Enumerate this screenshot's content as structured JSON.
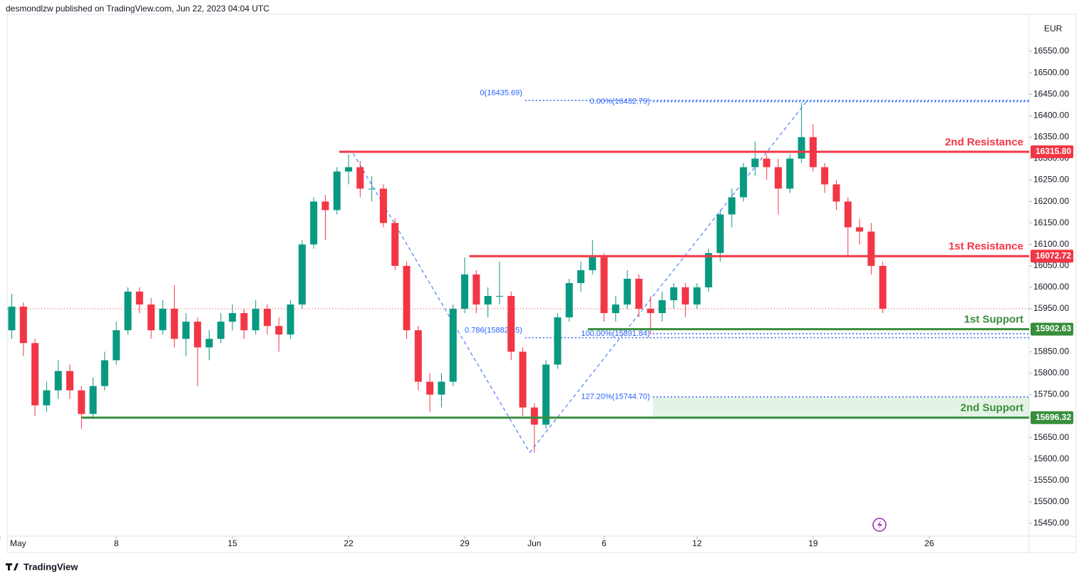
{
  "header": {
    "byline": "desmondlzw published on TradingView.com, Jun 22, 2023 04:04 UTC"
  },
  "footer": {
    "brand": "TradingView"
  },
  "chart_data": {
    "type": "candlestick",
    "currency": "EUR",
    "up_color": "#089981",
    "down_color": "#f23645",
    "grid": false,
    "xlim": [
      0.3,
      44.3
    ],
    "xticks": [
      {
        "value": 0,
        "label": "May"
      },
      {
        "value": 5,
        "label": "8"
      },
      {
        "value": 10,
        "label": "15"
      },
      {
        "value": 15,
        "label": "22"
      },
      {
        "value": 20,
        "label": "29"
      },
      {
        "value": 23,
        "label": "Jun"
      },
      {
        "value": 26,
        "label": "6"
      },
      {
        "value": 30,
        "label": "12"
      },
      {
        "value": 35,
        "label": "19"
      },
      {
        "value": 40,
        "label": "26"
      }
    ],
    "ylim": [
      15420,
      16636.4
    ],
    "yticks": [
      {
        "value": 15450,
        "label": "15450.00"
      },
      {
        "value": 15500,
        "label": "15500.00"
      },
      {
        "value": 15550,
        "label": "15550.00"
      },
      {
        "value": 15600,
        "label": "15600.00"
      },
      {
        "value": 15650,
        "label": "15650.00"
      },
      {
        "value": 15700,
        "label": "15700.00"
      },
      {
        "value": 15750,
        "label": "15750.00"
      },
      {
        "value": 15800,
        "label": "15800.00"
      },
      {
        "value": 15850,
        "label": "15850.00"
      },
      {
        "value": 15900,
        "label": "15900.00"
      },
      {
        "value": 15950,
        "label": "15950.00"
      },
      {
        "value": 16000,
        "label": "16000.00"
      },
      {
        "value": 16050,
        "label": "16050.00"
      },
      {
        "value": 16100,
        "label": "16100.00"
      },
      {
        "value": 16150,
        "label": "16150.00"
      },
      {
        "value": 16200,
        "label": "16200.00"
      },
      {
        "value": 16250,
        "label": "16250.00"
      },
      {
        "value": 16300,
        "label": "16300.00"
      },
      {
        "value": 16350,
        "label": "16350.00"
      },
      {
        "value": 16400,
        "label": "16400.00"
      },
      {
        "value": 16450,
        "label": "16450.00"
      },
      {
        "value": 16500,
        "label": "16500.00"
      },
      {
        "value": 16550,
        "label": "16550.00"
      }
    ],
    "x": [
      0.5,
      1,
      1.5,
      2,
      2.5,
      3,
      3.5,
      4,
      4.5,
      5,
      5.5,
      6,
      6.5,
      7,
      7.5,
      8,
      8.5,
      9,
      9.5,
      10,
      10.5,
      11,
      11.5,
      12,
      12.5,
      13,
      13.5,
      14,
      14.5,
      15,
      15.5,
      16,
      16.5,
      17,
      17.5,
      18,
      18.5,
      19,
      19.5,
      20,
      20.5,
      21,
      21.5,
      22,
      22.5,
      23,
      23.5,
      24,
      24.5,
      25,
      25.5,
      26,
      26.5,
      27,
      27.5,
      28,
      28.5,
      29,
      29.5,
      30,
      30.5,
      31,
      31.5,
      32,
      32.5,
      33,
      33.5,
      34,
      34.5,
      35,
      35.5,
      36,
      36.5,
      37,
      37.5,
      38
    ],
    "candles": [
      [
        15900,
        15985,
        15880,
        15955
      ],
      [
        15955,
        15965,
        15840,
        15870
      ],
      [
        15870,
        15880,
        15700,
        15725
      ],
      [
        15725,
        15780,
        15710,
        15760
      ],
      [
        15760,
        15830,
        15740,
        15805
      ],
      [
        15805,
        15820,
        15740,
        15760
      ],
      [
        15760,
        15770,
        15670,
        15705
      ],
      [
        15705,
        15790,
        15695,
        15770
      ],
      [
        15770,
        15850,
        15760,
        15830
      ],
      [
        15830,
        15920,
        15820,
        15900
      ],
      [
        15900,
        16000,
        15890,
        15990
      ],
      [
        15990,
        16000,
        15940,
        15960
      ],
      [
        15960,
        15975,
        15880,
        15900
      ],
      [
        15900,
        15970,
        15890,
        15950
      ],
      [
        15950,
        16005,
        15860,
        15880
      ],
      [
        15880,
        15940,
        15840,
        15920
      ],
      [
        15920,
        15930,
        15770,
        15860
      ],
      [
        15860,
        15900,
        15830,
        15880
      ],
      [
        15880,
        15940,
        15870,
        15920
      ],
      [
        15920,
        15960,
        15900,
        15940
      ],
      [
        15940,
        15950,
        15880,
        15900
      ],
      [
        15900,
        15970,
        15890,
        15950
      ],
      [
        15950,
        15960,
        15890,
        15910
      ],
      [
        15910,
        15930,
        15850,
        15890
      ],
      [
        15890,
        15970,
        15880,
        15960
      ],
      [
        15960,
        16110,
        15950,
        16100
      ],
      [
        16100,
        16210,
        16090,
        16200
      ],
      [
        16200,
        16215,
        16110,
        16180
      ],
      [
        16180,
        16280,
        16170,
        16270
      ],
      [
        16270,
        16310,
        16240,
        16280
      ],
      [
        16280,
        16295,
        16210,
        16230
      ],
      [
        16230,
        16260,
        16200,
        16230
      ],
      [
        16230,
        16240,
        16140,
        16150
      ],
      [
        16150,
        16160,
        16040,
        16050
      ],
      [
        16050,
        16060,
        15880,
        15900
      ],
      [
        15900,
        15910,
        15760,
        15780
      ],
      [
        15780,
        15800,
        15710,
        15750
      ],
      [
        15750,
        15800,
        15720,
        15780
      ],
      [
        15780,
        15960,
        15770,
        15950
      ],
      [
        15950,
        16070,
        15940,
        16030
      ],
      [
        16030,
        16040,
        15940,
        15960
      ],
      [
        15960,
        16000,
        15930,
        15980
      ],
      [
        15980,
        16060,
        15960,
        15980
      ],
      [
        15980,
        15990,
        15830,
        15850
      ],
      [
        15850,
        15860,
        15700,
        15720
      ],
      [
        15720,
        15730,
        15615,
        15680
      ],
      [
        15680,
        15830,
        15670,
        15820
      ],
      [
        15820,
        15940,
        15810,
        15930
      ],
      [
        15930,
        16020,
        15920,
        16010
      ],
      [
        16010,
        16060,
        15990,
        16040
      ],
      [
        16040,
        16110,
        16030,
        16070
      ],
      [
        16070,
        16080,
        15920,
        15940
      ],
      [
        15940,
        15980,
        15920,
        15960
      ],
      [
        15960,
        16040,
        15950,
        16020
      ],
      [
        16020,
        16030,
        15930,
        15950
      ],
      [
        15950,
        15980,
        15890,
        15940
      ],
      [
        15940,
        15990,
        15920,
        15970
      ],
      [
        15970,
        16010,
        15950,
        16000
      ],
      [
        16000,
        16010,
        15930,
        15960
      ],
      [
        15960,
        16010,
        15950,
        16000
      ],
      [
        16000,
        16090,
        15990,
        16080
      ],
      [
        16080,
        16180,
        16060,
        16170
      ],
      [
        16170,
        16230,
        16140,
        16210
      ],
      [
        16210,
        16290,
        16200,
        16280
      ],
      [
        16280,
        16340,
        16260,
        16300
      ],
      [
        16300,
        16310,
        16250,
        16280
      ],
      [
        16280,
        16300,
        16170,
        16230
      ],
      [
        16230,
        16310,
        16220,
        16300
      ],
      [
        16300,
        16430,
        16290,
        16350
      ],
      [
        16350,
        16380,
        16270,
        16280
      ],
      [
        16280,
        16290,
        16220,
        16240
      ],
      [
        16240,
        16250,
        16180,
        16200
      ],
      [
        16200,
        16210,
        16070,
        16140
      ],
      [
        16140,
        16160,
        16100,
        16130
      ],
      [
        16130,
        16150,
        16030,
        16050
      ],
      [
        16050,
        16060,
        15940,
        15950
      ]
    ],
    "levels": [
      {
        "name": "2nd Resistance",
        "value": 16315.8,
        "value_label": "16315.80",
        "from": 14.6,
        "color": "#f23645"
      },
      {
        "name": "1st Resistance",
        "value": 16072.72,
        "value_label": "16072.72",
        "from": 20.2,
        "color": "#f23645"
      },
      {
        "name": "1st Support",
        "value": 15902.63,
        "value_label": "15902.63",
        "from": 25.3,
        "color": "#388e3c"
      },
      {
        "name": "2nd Support",
        "value": 15696.32,
        "value_label": "15696.32",
        "from": 3.5,
        "color": "#388e3c"
      }
    ],
    "zone": {
      "from": 28.1,
      "low": 15696.32,
      "high": 15744.7,
      "color": "#4caf50"
    },
    "fib_levels": [
      {
        "label": "0(16435.69)",
        "value": 16435.69,
        "from": 22.6
      },
      {
        "label": "0.786(15882.65)",
        "value": 15882.65,
        "from": 22.6
      },
      {
        "label": "0.00%(16432.79)",
        "value": 16432.79,
        "from": 28.1
      },
      {
        "label": "100.00%(15891.84)",
        "value": 15891.84,
        "from": 28.1
      },
      {
        "label": "127.20%(15744.70)",
        "value": 15744.7,
        "from": 28.1
      }
    ],
    "fib_color": "#2962ff",
    "trend_line": {
      "points": [
        [
          15.2,
          16312
        ],
        [
          22.8,
          15615
        ],
        [
          34.7,
          16432
        ]
      ]
    }
  }
}
